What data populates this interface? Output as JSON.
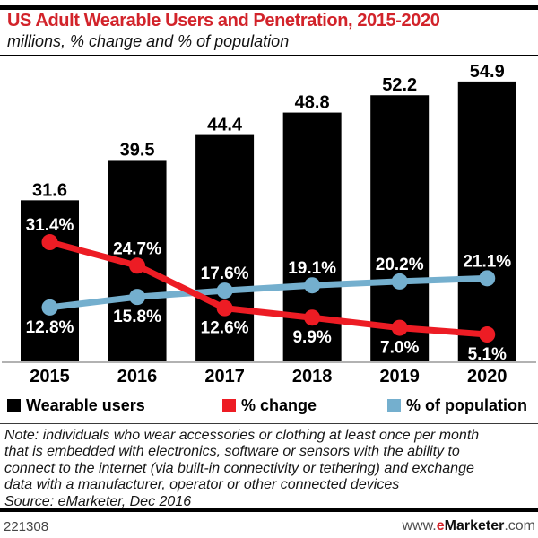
{
  "chart_data": {
    "type": "combo (bar + line)",
    "title": "US Adult Wearable Users and Penetration, 2015-2020",
    "subtitle": "millions, % change and % of population",
    "categories": [
      "2015",
      "2016",
      "2017",
      "2018",
      "2019",
      "2020"
    ],
    "series": [
      {
        "name": "Wearable users",
        "kind": "bar",
        "unit": "millions",
        "values": [
          31.6,
          39.5,
          44.4,
          48.8,
          52.2,
          54.9
        ],
        "labels": [
          "31.6",
          "39.5",
          "44.4",
          "48.8",
          "52.2",
          "54.9"
        ],
        "color": "#000000",
        "label_color": "#000000"
      },
      {
        "name": "% change",
        "kind": "line",
        "unit": "%",
        "values": [
          31.4,
          24.7,
          12.6,
          9.9,
          7.0,
          5.1
        ],
        "labels": [
          "31.4%",
          "24.7%",
          "12.6%",
          "9.9%",
          "7.0%",
          "5.1%"
        ],
        "color": "#ed1c24",
        "label_color": "#ffffff",
        "label_placement": [
          "above",
          "above",
          "below",
          "below",
          "below",
          "below"
        ]
      },
      {
        "name": "% of population",
        "kind": "line",
        "unit": "%",
        "values": [
          12.8,
          15.8,
          17.6,
          19.1,
          20.2,
          21.1
        ],
        "labels": [
          "12.8%",
          "15.8%",
          "17.6%",
          "19.1%",
          "20.2%",
          "21.1%"
        ],
        "color": "#74afce",
        "label_color": "#ffffff",
        "label_placement": [
          "below",
          "below",
          "above",
          "above",
          "above",
          "above"
        ]
      }
    ],
    "bar_axis": {
      "range": [
        0,
        59.5
      ],
      "ticks_visible": false
    },
    "line_axis": {
      "range": [
        0,
        83.8
      ],
      "ticks_visible": false
    },
    "grid": false,
    "legend_position": "bottom",
    "baseline_axis_color": "#999999"
  },
  "note": {
    "lines": [
      "Note: individuals who wear accessories or clothing at least once per month",
      "that is embedded with electronics, software or sensors with the ability to",
      "connect to the internet (via built-in connectivity or tethering) and exchange",
      "data with a manufacturer, operator or other connected devices"
    ],
    "source": "Source: eMarketer, Dec 2016"
  },
  "footer": {
    "chart_id": "221308",
    "url_prefix": "www.",
    "url_brand_e": "e",
    "url_brand_rest": "Marketer",
    "url_suffix": ".com"
  },
  "colors": {
    "title_red": "#d2232a",
    "line_red": "#ed1c24",
    "line_blue": "#74afce",
    "bar_black": "#000000",
    "axis_gray": "#999999"
  }
}
